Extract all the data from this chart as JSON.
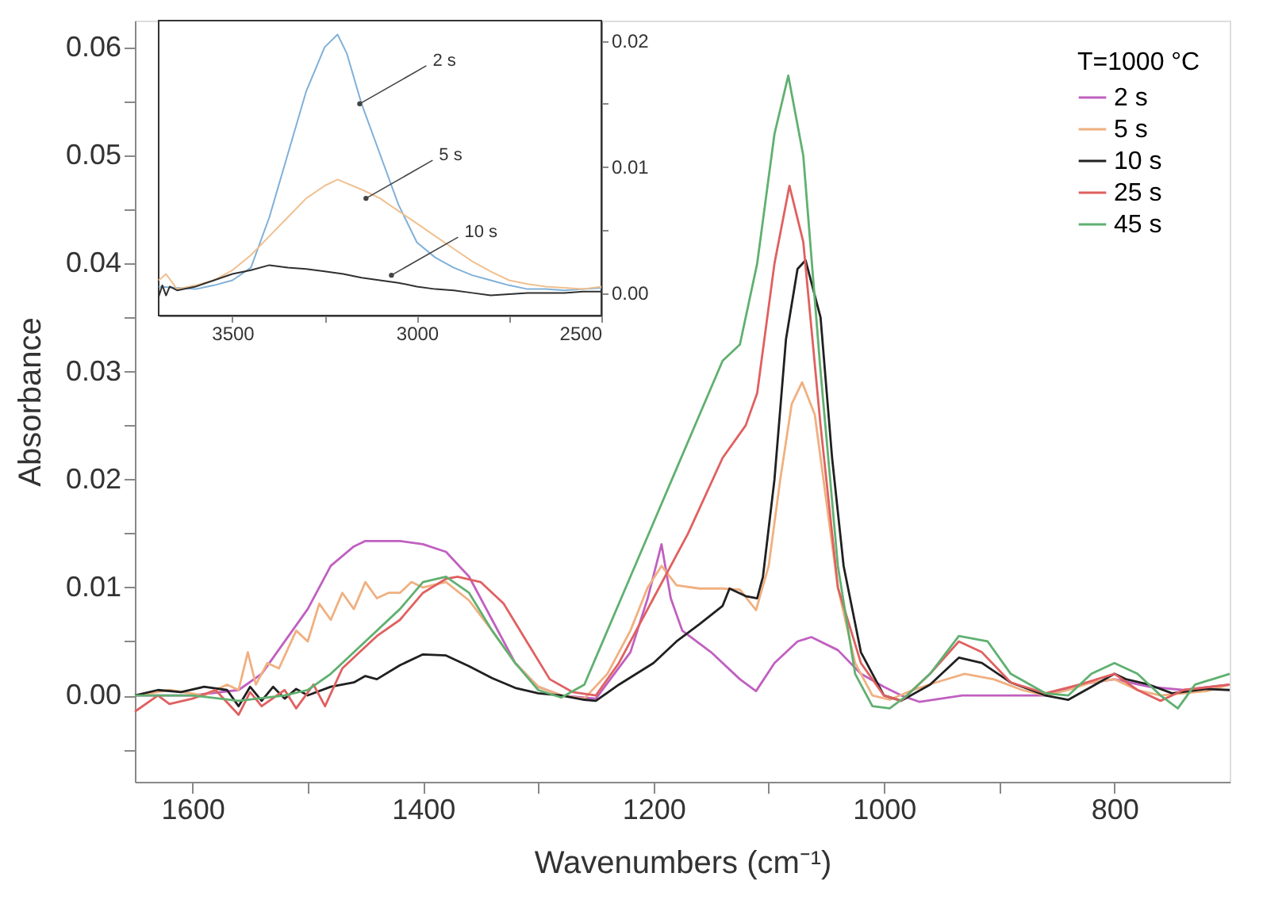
{
  "chart_data": [
    {
      "type": "line",
      "xlabel": "Wavenumbers (cm⁻¹)",
      "ylabel": "Absorbance",
      "legend_title": "T=1000 °C",
      "legend": "top right",
      "grid": false,
      "xlim": [
        1650,
        700
      ],
      "ylim": [
        -0.008,
        0.0625
      ],
      "xticks": [
        1600,
        {
          "value": 1500,
          "label": null
        },
        1400,
        {
          "value": 1300,
          "label": null
        },
        1200,
        {
          "value": 1100,
          "label": null
        },
        1000,
        {
          "value": 900,
          "label": null
        },
        800
      ],
      "yticks": [
        {
          "value": -0.005,
          "label": null
        },
        {
          "value": 0,
          "label": "0.00"
        },
        {
          "value": 0.005,
          "label": null
        },
        {
          "value": 0.01,
          "label": "0.01"
        },
        {
          "value": 0.015,
          "label": null
        },
        {
          "value": 0.02,
          "label": "0.02"
        },
        {
          "value": 0.025,
          "label": null
        },
        {
          "value": 0.03,
          "label": "0.03"
        },
        {
          "value": 0.035,
          "label": null
        },
        {
          "value": 0.04,
          "label": "0.04"
        },
        {
          "value": 0.045,
          "label": null
        },
        {
          "value": 0.05,
          "label": "0.05"
        },
        {
          "value": 0.055,
          "label": null
        },
        {
          "value": 0.06,
          "label": "0.06"
        }
      ],
      "series": [
        {
          "name": "2 s",
          "color": "#c060c0",
          "x": [
            1650,
            1600,
            1560,
            1540,
            1500,
            1480,
            1460,
            1450,
            1420,
            1400,
            1380,
            1360,
            1340,
            1320,
            1300,
            1280,
            1250,
            1220,
            1205,
            1193,
            1185,
            1175,
            1150,
            1125,
            1111,
            1095,
            1075,
            1063,
            1040,
            1020,
            1000,
            985,
            969,
            932,
            891,
            860,
            830,
            800,
            770,
            740,
            700
          ],
          "values": [
            0,
            0,
            0.0005,
            0.002,
            0.008,
            0.012,
            0.0138,
            0.0143,
            0.0143,
            0.014,
            0.0133,
            0.011,
            0.007,
            0.003,
            0.0008,
            0,
            -0.0003,
            0.004,
            0.009,
            0.014,
            0.009,
            0.006,
            0.004,
            0.0015,
            0.0004,
            0.003,
            0.005,
            0.0054,
            0.0042,
            0.002,
            0.0008,
            0,
            -0.0006,
            0,
            0,
            0,
            0.001,
            0.0015,
            0.0008,
            0.0005,
            0.001
          ]
        },
        {
          "name": "5 s",
          "color": "#f0b080",
          "x": [
            1650,
            1620,
            1590,
            1570,
            1560,
            1552,
            1545,
            1535,
            1525,
            1510,
            1500,
            1490,
            1480,
            1470,
            1460,
            1450,
            1440,
            1430,
            1420,
            1410,
            1400,
            1380,
            1360,
            1340,
            1320,
            1300,
            1280,
            1260,
            1240,
            1220,
            1205,
            1193,
            1180,
            1160,
            1140,
            1125,
            1111,
            1100,
            1090,
            1080,
            1071,
            1060,
            1050,
            1040,
            1025,
            1010,
            995,
            975,
            955,
            930,
            905,
            880,
            860,
            840,
            820,
            800,
            780,
            760,
            740,
            720,
            700
          ],
          "values": [
            0,
            0.0005,
            0,
            0.001,
            0.0005,
            0.004,
            0.001,
            0.003,
            0.0025,
            0.006,
            0.005,
            0.0085,
            0.007,
            0.0095,
            0.008,
            0.0105,
            0.009,
            0.0095,
            0.0095,
            0.0105,
            0.01,
            0.0105,
            0.0088,
            0.006,
            0.003,
            0.0008,
            0,
            -0.0003,
            0.002,
            0.006,
            0.01,
            0.012,
            0.0102,
            0.0099,
            0.0099,
            0.0098,
            0.0079,
            0.012,
            0.02,
            0.027,
            0.029,
            0.026,
            0.018,
            0.01,
            0.003,
            0,
            -0.0004,
            0.0005,
            0.0012,
            0.002,
            0.0015,
            0.0005,
            0,
            0.0005,
            0.0012,
            0.0015,
            0.0005,
            0,
            0.0002,
            0.0004,
            0.001
          ]
        },
        {
          "name": "10 s",
          "color": "#202020",
          "x": [
            1650,
            1630,
            1610,
            1590,
            1570,
            1560,
            1550,
            1540,
            1530,
            1520,
            1510,
            1500,
            1480,
            1460,
            1450,
            1440,
            1420,
            1400,
            1380,
            1360,
            1340,
            1320,
            1300,
            1280,
            1260,
            1250,
            1230,
            1200,
            1180,
            1160,
            1140,
            1134,
            1120,
            1110,
            1105,
            1095,
            1085,
            1075,
            1068,
            1055,
            1045,
            1035,
            1020,
            1000,
            985,
            960,
            935,
            915,
            890,
            860,
            840,
            820,
            800,
            790,
            770,
            750,
            720,
            700
          ],
          "values": [
            0,
            0.0005,
            0.0003,
            0.0008,
            0.0005,
            -0.001,
            0.0008,
            -0.0005,
            0.0008,
            -0.0003,
            0.0006,
            0,
            0.0008,
            0.0012,
            0.0018,
            0.0015,
            0.0028,
            0.0038,
            0.0037,
            0.0027,
            0.0016,
            0.0007,
            0.0002,
            0,
            -0.0004,
            -0.0005,
            0.001,
            0.003,
            0.005,
            0.0066,
            0.0083,
            0.0099,
            0.0092,
            0.009,
            0.011,
            0.02,
            0.033,
            0.0395,
            0.0403,
            0.035,
            0.022,
            0.012,
            0.004,
            0,
            -0.0005,
            0.001,
            0.0035,
            0.003,
            0.0012,
            0,
            -0.0004,
            0.0008,
            0.002,
            0.0015,
            0.001,
            0.0002,
            0.0006,
            0.0005
          ]
        },
        {
          "name": "25 s",
          "color": "#e06060",
          "x": [
            1650,
            1630,
            1620,
            1600,
            1580,
            1560,
            1550,
            1540,
            1520,
            1510,
            1495,
            1485,
            1470,
            1455,
            1440,
            1420,
            1400,
            1380,
            1370,
            1350,
            1330,
            1310,
            1290,
            1270,
            1250,
            1230,
            1200,
            1170,
            1140,
            1120,
            1110,
            1095,
            1082,
            1070,
            1055,
            1040,
            1020,
            1000,
            985,
            960,
            935,
            915,
            890,
            860,
            830,
            800,
            780,
            760,
            740,
            700
          ],
          "values": [
            -0.0015,
            0,
            -0.0008,
            -0.0003,
            0.0005,
            -0.0018,
            0.0003,
            -0.001,
            0.0005,
            -0.0012,
            0.001,
            -0.001,
            0.0025,
            0.004,
            0.0055,
            0.007,
            0.0095,
            0.0108,
            0.011,
            0.0105,
            0.0085,
            0.005,
            0.0015,
            0.0003,
            0,
            0.003,
            0.009,
            0.015,
            0.022,
            0.025,
            0.028,
            0.04,
            0.0472,
            0.042,
            0.025,
            0.01,
            0.003,
            0,
            -0.0005,
            0.002,
            0.005,
            0.004,
            0.0012,
            0.0002,
            0.001,
            0.002,
            0.0005,
            -0.0005,
            0.0005,
            0.001
          ]
        },
        {
          "name": "45 s",
          "color": "#60b070",
          "x": [
            1650,
            1600,
            1560,
            1520,
            1500,
            1480,
            1450,
            1420,
            1400,
            1380,
            1360,
            1340,
            1320,
            1300,
            1280,
            1260,
            1240,
            1220,
            1200,
            1180,
            1160,
            1140,
            1125,
            1110,
            1095,
            1083,
            1070,
            1055,
            1040,
            1025,
            1010,
            995,
            980,
            960,
            935,
            910,
            890,
            860,
            840,
            820,
            800,
            780,
            760,
            745,
            730,
            700
          ],
          "values": [
            0,
            0,
            -0.0005,
            0,
            0.0005,
            0.002,
            0.005,
            0.008,
            0.0105,
            0.011,
            0.0095,
            0.006,
            0.003,
            0.0005,
            -0.0002,
            0.001,
            0.006,
            0.011,
            0.016,
            0.021,
            0.026,
            0.031,
            0.0325,
            0.04,
            0.052,
            0.0574,
            0.05,
            0.03,
            0.012,
            0.002,
            -0.001,
            -0.0012,
            0,
            0.002,
            0.0055,
            0.005,
            0.002,
            0.0002,
            0,
            0.002,
            0.003,
            0.002,
            0,
            -0.0012,
            0.001,
            0.002
          ]
        }
      ]
    },
    {
      "type": "line",
      "grid": false,
      "xlim": [
        3700,
        2500
      ],
      "ylim": [
        -0.0018,
        0.0216
      ],
      "xticks": [
        3500,
        {
          "value": 3250,
          "label": null
        },
        3000,
        {
          "value": 2750,
          "label": null
        },
        2500
      ],
      "yticks": [
        {
          "value": 0,
          "label": "0.00"
        },
        {
          "value": 0.005,
          "label": null
        },
        {
          "value": 0.01,
          "label": "0.01"
        },
        {
          "value": 0.015,
          "label": null
        },
        {
          "value": 0.02,
          "label": "0.02"
        }
      ],
      "annotations": [
        {
          "text": "2 s",
          "x": 3155,
          "y": 0.015
        },
        {
          "text": "5 s",
          "x": 3138,
          "y": 0.0075
        },
        {
          "text": "10 s",
          "x": 3069,
          "y": 0.0014
        }
      ],
      "series": [
        {
          "color": "#80b0d8",
          "x": [
            3700,
            3650,
            3600,
            3550,
            3500,
            3450,
            3400,
            3350,
            3300,
            3250,
            3215,
            3190,
            3150,
            3100,
            3050,
            3000,
            2950,
            2900,
            2850,
            2800,
            2750,
            2700,
            2650,
            2600,
            2550,
            2500
          ],
          "values": [
            0.0005,
            0.0004,
            0.0003,
            0.0006,
            0.001,
            0.002,
            0.006,
            0.011,
            0.016,
            0.0195,
            0.0205,
            0.019,
            0.015,
            0.011,
            0.007,
            0.004,
            0.0028,
            0.002,
            0.0014,
            0.001,
            0.0006,
            0.0003,
            0.0003,
            0.0002,
            0.0003,
            0.0004
          ]
        },
        {
          "color": "#f0c090",
          "x": [
            3700,
            3680,
            3650,
            3600,
            3550,
            3500,
            3450,
            3400,
            3350,
            3300,
            3250,
            3215,
            3150,
            3100,
            3050,
            3000,
            2950,
            2900,
            2850,
            2800,
            2750,
            2700,
            2650,
            2600,
            2550,
            2500
          ],
          "values": [
            0.001,
            0.0015,
            0.0003,
            0.0006,
            0.001,
            0.0018,
            0.003,
            0.0045,
            0.006,
            0.0075,
            0.0085,
            0.009,
            0.0082,
            0.0075,
            0.0065,
            0.0055,
            0.0045,
            0.0035,
            0.0025,
            0.0017,
            0.001,
            0.0007,
            0.0005,
            0.0004,
            0.0003,
            0.0005
          ]
        },
        {
          "color": "#303030",
          "x": [
            3700,
            3690,
            3680,
            3670,
            3650,
            3600,
            3550,
            3500,
            3450,
            3400,
            3350,
            3300,
            3250,
            3200,
            3150,
            3100,
            3050,
            3000,
            2950,
            2900,
            2850,
            2800,
            2750,
            2700,
            2650,
            2600,
            2550,
            2500
          ],
          "values": [
            -0.0003,
            0.0006,
            -0.0002,
            0.0005,
            0.0002,
            0.0005,
            0.001,
            0.0015,
            0.0018,
            0.0022,
            0.002,
            0.0019,
            0.0017,
            0.0015,
            0.0012,
            0.001,
            0.0008,
            0.0005,
            0.0003,
            0.0002,
            0,
            -0.0002,
            -0.0001,
            0,
            0,
            0,
            0.0001,
            0.0001
          ]
        }
      ]
    }
  ]
}
